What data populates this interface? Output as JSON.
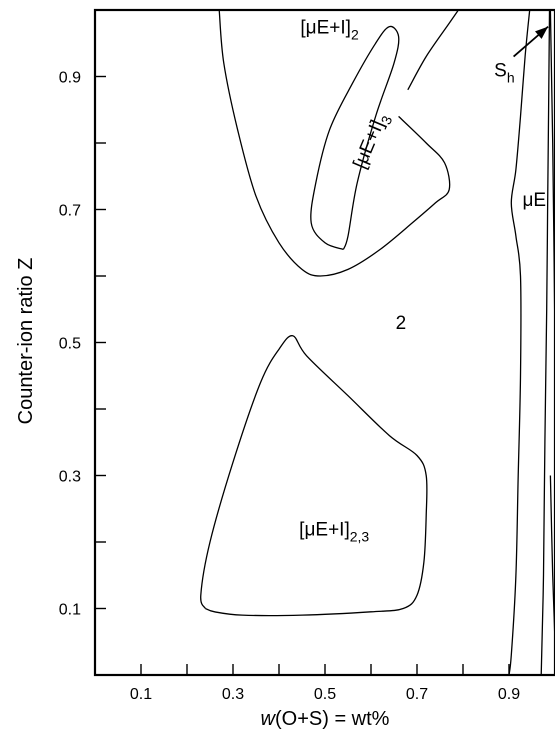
{
  "chart_data": {
    "type": "phase-diagram",
    "xlabel": {
      "italic": "w",
      "rest": "(O+S) = wt%"
    },
    "ylabel": "Counter-ion ratio Z",
    "xlim": [
      0.0,
      1.0
    ],
    "ylim": [
      0.0,
      1.0
    ],
    "x_ticks": [
      0.1,
      0.2,
      0.3,
      0.4,
      0.5,
      0.6,
      0.7,
      0.8,
      0.9
    ],
    "x_tick_labels": [
      {
        "value": 0.1,
        "label": "0.1"
      },
      {
        "value": 0.3,
        "label": "0.3"
      },
      {
        "value": 0.5,
        "label": "0.5"
      },
      {
        "value": 0.7,
        "label": "0.7"
      },
      {
        "value": 0.9,
        "label": "0.9"
      }
    ],
    "y_ticks": [
      0.1,
      0.2,
      0.3,
      0.4,
      0.5,
      0.6,
      0.7,
      0.8,
      0.9
    ],
    "y_tick_labels": [
      {
        "value": 0.1,
        "label": "0.1"
      },
      {
        "value": 0.3,
        "label": "0.3"
      },
      {
        "value": 0.5,
        "label": "0.5"
      },
      {
        "value": 0.7,
        "label": "0.7"
      },
      {
        "value": 0.9,
        "label": "0.9"
      }
    ],
    "boundaries": [
      {
        "name": "muE-I2-outer",
        "points": [
          [
            0.27,
            1.0
          ],
          [
            0.28,
            0.92
          ],
          [
            0.31,
            0.82
          ],
          [
            0.35,
            0.72
          ],
          [
            0.4,
            0.65
          ],
          [
            0.45,
            0.61
          ],
          [
            0.49,
            0.6
          ],
          [
            0.55,
            0.61
          ],
          [
            0.62,
            0.64
          ],
          [
            0.69,
            0.68
          ],
          [
            0.74,
            0.71
          ],
          [
            0.77,
            0.73
          ],
          [
            0.76,
            0.77
          ],
          [
            0.72,
            0.8
          ],
          [
            0.66,
            0.84
          ]
        ]
      },
      {
        "name": "muE-I2-outer-right",
        "points": [
          [
            0.68,
            0.88
          ],
          [
            0.72,
            0.93
          ],
          [
            0.77,
            0.98
          ],
          [
            0.79,
            1.0
          ]
        ]
      },
      {
        "name": "muE-I3",
        "points": [
          [
            0.54,
            0.64
          ],
          [
            0.5,
            0.65
          ],
          [
            0.47,
            0.68
          ],
          [
            0.48,
            0.74
          ],
          [
            0.51,
            0.82
          ],
          [
            0.56,
            0.89
          ],
          [
            0.61,
            0.95
          ],
          [
            0.64,
            0.975
          ],
          [
            0.66,
            0.96
          ],
          [
            0.65,
            0.92
          ],
          [
            0.61,
            0.84
          ],
          [
            0.57,
            0.74
          ],
          [
            0.55,
            0.66
          ],
          [
            0.54,
            0.64
          ]
        ]
      },
      {
        "name": "muE-I23",
        "points": [
          [
            0.24,
            0.1
          ],
          [
            0.23,
            0.12
          ],
          [
            0.25,
            0.2
          ],
          [
            0.3,
            0.32
          ],
          [
            0.36,
            0.44
          ],
          [
            0.4,
            0.49
          ],
          [
            0.43,
            0.51
          ],
          [
            0.46,
            0.48
          ],
          [
            0.55,
            0.42
          ],
          [
            0.64,
            0.36
          ],
          [
            0.7,
            0.33
          ],
          [
            0.72,
            0.3
          ],
          [
            0.72,
            0.24
          ],
          [
            0.715,
            0.17
          ],
          [
            0.7,
            0.12
          ],
          [
            0.67,
            0.1
          ],
          [
            0.6,
            0.095
          ],
          [
            0.45,
            0.09
          ],
          [
            0.32,
            0.09
          ],
          [
            0.26,
            0.095
          ],
          [
            0.24,
            0.1
          ]
        ]
      },
      {
        "name": "muE-left",
        "points": [
          [
            0.945,
            1.0
          ],
          [
            0.935,
            0.93
          ],
          [
            0.925,
            0.84
          ],
          [
            0.915,
            0.76
          ],
          [
            0.905,
            0.71
          ],
          [
            0.915,
            0.66
          ],
          [
            0.925,
            0.6
          ],
          [
            0.925,
            0.45
          ],
          [
            0.92,
            0.3
          ],
          [
            0.915,
            0.15
          ],
          [
            0.905,
            0.03
          ],
          [
            0.9,
            0.0
          ]
        ]
      },
      {
        "name": "muE-right",
        "points": [
          [
            0.988,
            1.0
          ],
          [
            0.986,
            0.85
          ],
          [
            0.984,
            0.7
          ],
          [
            0.982,
            0.55
          ],
          [
            0.978,
            0.35
          ],
          [
            0.975,
            0.15
          ],
          [
            0.97,
            0.0
          ]
        ]
      },
      {
        "name": "Sh-upper",
        "points": [
          [
            0.99,
            1.0
          ],
          [
            0.995,
            0.8
          ],
          [
            1.0,
            0.5
          ]
        ]
      },
      {
        "name": "Sh-lower",
        "points": [
          [
            0.99,
            0.3
          ],
          [
            0.995,
            0.15
          ],
          [
            1.0,
            0.05
          ]
        ]
      }
    ],
    "arrow": {
      "from": [
        0.91,
        0.93
      ],
      "to": [
        0.985,
        0.975
      ]
    },
    "region_labels": [
      {
        "base": "[μE+I]",
        "sub": "2",
        "x": 0.51,
        "y": 0.965,
        "rotate": 0
      },
      {
        "base": "[μE+I]",
        "sub": "3",
        "x": 0.61,
        "y": 0.8,
        "rotate": -67
      },
      {
        "base": "[μE+I]",
        "sub": "2,3",
        "x": 0.52,
        "y": 0.21,
        "rotate": 0
      },
      {
        "base": "S",
        "sub": "h",
        "x": 0.89,
        "y": 0.9,
        "rotate": 0
      },
      {
        "base": "μE",
        "sub": "",
        "x": 0.955,
        "y": 0.705,
        "rotate": 0
      },
      {
        "base": "2",
        "sub": "",
        "x": 0.665,
        "y": 0.52,
        "rotate": 0
      }
    ]
  }
}
